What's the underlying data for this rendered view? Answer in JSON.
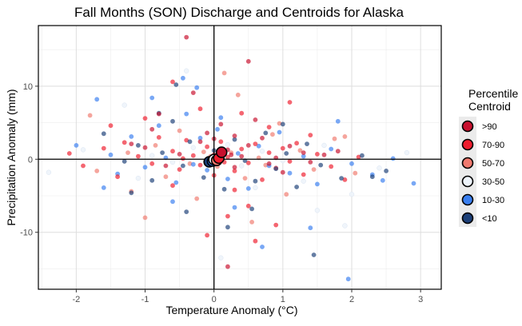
{
  "chart_data": {
    "type": "scatter",
    "title": "Fall Months (SON) Discharge and Centroids for Alaska",
    "xlabel": "Temperature Anomaly (°C)",
    "ylabel": "Precipitation Anomaly (mm)",
    "xlim": [
      -2.55,
      3.3
    ],
    "ylim": [
      -17.8,
      18.3
    ],
    "x_ticks": [
      -2,
      -1,
      0,
      1,
      2,
      3
    ],
    "y_ticks": [
      -10,
      0,
      10
    ],
    "x_tick_labels": [
      "-2",
      "-1",
      "0",
      "1",
      "2",
      "3"
    ],
    "y_tick_labels": [
      "-10",
      "0",
      "10"
    ],
    "grid": true,
    "reference_lines": {
      "x": 0,
      "y": 0
    },
    "legend": {
      "title": "Percentile Centroid",
      "title_lines": [
        "Percentile",
        "Centroid"
      ],
      "position": "right",
      "entries": [
        {
          "label": ">90",
          "color": "#c8102e"
        },
        {
          "label": "70-90",
          "color": "#ef1d2e"
        },
        {
          "label": "50-70",
          "color": "#f07a6f"
        },
        {
          "label": "30-50",
          "color": "#eef4fb"
        },
        {
          "label": "10-30",
          "color": "#3a7ff0"
        },
        {
          "label": "<10",
          "color": "#1c3f78"
        }
      ]
    },
    "series": [
      {
        "name": ">90",
        "color": "#c8102e",
        "centroid": [
          0.11,
          0.95
        ],
        "points": [
          [
            -0.4,
            16.7
          ],
          [
            0.5,
            13.4
          ],
          [
            -0.8,
            6.2
          ],
          [
            0.1,
            4.8
          ],
          [
            0.3,
            3.2
          ],
          [
            -0.2,
            2.4
          ],
          [
            0.7,
            2.9
          ],
          [
            1.1,
            1.8
          ],
          [
            -1.0,
            1.6
          ],
          [
            0.2,
            1.3
          ],
          [
            1.3,
            0.9
          ],
          [
            -0.5,
            0.7
          ],
          [
            0.4,
            0.4
          ],
          [
            0.9,
            0.2
          ],
          [
            1.6,
            0.6
          ],
          [
            -1.2,
            2.1
          ],
          [
            0.0,
            2.8
          ],
          [
            0.6,
            5.4
          ],
          [
            -0.3,
            9.1
          ],
          [
            0.8,
            -0.6
          ],
          [
            0.3,
            -1.1
          ],
          [
            1.0,
            -1.8
          ],
          [
            -0.7,
            -0.9
          ],
          [
            1.8,
            1.1
          ],
          [
            0.2,
            -14.7
          ],
          [
            -0.1,
            3.6
          ],
          [
            0.5,
            1.9
          ],
          [
            1.4,
            -0.4
          ],
          [
            -0.9,
            4.1
          ],
          [
            0.25,
            0.6
          ]
        ]
      },
      {
        "name": "70-90",
        "color": "#ef1d2e",
        "centroid": [
          0.07,
          0.15
        ],
        "points": [
          [
            -2.1,
            0.8
          ],
          [
            -1.6,
            1.5
          ],
          [
            -1.3,
            2.3
          ],
          [
            -1.1,
            0.4
          ],
          [
            -0.9,
            -0.6
          ],
          [
            -0.8,
            3.0
          ],
          [
            -0.6,
            1.1
          ],
          [
            -0.5,
            -1.4
          ],
          [
            -0.4,
            2.6
          ],
          [
            -0.3,
            0.5
          ],
          [
            -0.2,
            -0.8
          ],
          [
            -0.1,
            1.7
          ],
          [
            0.0,
            -2.2
          ],
          [
            0.1,
            2.4
          ],
          [
            0.2,
            0.3
          ],
          [
            0.3,
            -1.6
          ],
          [
            0.4,
            1.4
          ],
          [
            0.5,
            -0.5
          ],
          [
            0.6,
            2.1
          ],
          [
            0.7,
            -2.8
          ],
          [
            0.8,
            0.9
          ],
          [
            0.9,
            -1.2
          ],
          [
            1.0,
            1.5
          ],
          [
            1.1,
            -0.3
          ],
          [
            1.2,
            2.2
          ],
          [
            1.3,
            -2.1
          ],
          [
            1.5,
            0.7
          ],
          [
            1.7,
            -1.0
          ],
          [
            -1.9,
            -0.9
          ],
          [
            -1.4,
            -2.4
          ],
          [
            -0.6,
            -3.6
          ],
          [
            0.3,
            -4.2
          ],
          [
            0.5,
            -6.4
          ],
          [
            0.2,
            -7.8
          ],
          [
            -0.1,
            -10.4
          ],
          [
            0.6,
            -11.2
          ],
          [
            0.9,
            -9.0
          ],
          [
            1.9,
            -2.8
          ],
          [
            2.1,
            0.3
          ],
          [
            -1.5,
            4.6
          ],
          [
            -0.2,
            6.9
          ],
          [
            0.4,
            6.3
          ],
          [
            -0.6,
            10.6
          ],
          [
            1.1,
            7.8
          ],
          [
            0.8,
            4.4
          ],
          [
            -1.0,
            5.6
          ],
          [
            1.4,
            3.3
          ],
          [
            0.0,
            0.6
          ],
          [
            0.15,
            -0.4
          ],
          [
            -0.45,
            0.1
          ]
        ]
      },
      {
        "name": "50-70",
        "color": "#f07a6f",
        "centroid": [
          0.04,
          -0.15
        ],
        "points": [
          [
            -1.8,
            6.0
          ],
          [
            -1.7,
            -1.6
          ],
          [
            -1.2,
            -4.4
          ],
          [
            -1.0,
            -8.0
          ],
          [
            -0.7,
            -2.4
          ],
          [
            -0.5,
            3.9
          ],
          [
            -0.35,
            -0.6
          ],
          [
            -0.15,
            1.0
          ],
          [
            0.05,
            -1.0
          ],
          [
            0.25,
            0.9
          ],
          [
            0.45,
            -2.6
          ],
          [
            0.65,
            0.2
          ],
          [
            0.85,
            3.4
          ],
          [
            1.05,
            -4.8
          ],
          [
            1.25,
            1.2
          ],
          [
            1.45,
            -1.4
          ],
          [
            1.75,
            2.8
          ],
          [
            2.05,
            -1.9
          ],
          [
            0.35,
            8.8
          ],
          [
            0.15,
            11.8
          ],
          [
            -0.25,
            -5.4
          ],
          [
            0.55,
            -8.6
          ],
          [
            -0.85,
            1.9
          ],
          [
            0.75,
            -0.8
          ],
          [
            -0.05,
            0.4
          ],
          [
            1.9,
            3.1
          ],
          [
            -1.25,
            0.9
          ],
          [
            0.95,
            4.9
          ]
        ]
      },
      {
        "name": "30-50",
        "color": "#eef4fb",
        "centroid": [
          0.0,
          -0.05
        ],
        "points": [
          [
            -2.4,
            -1.8
          ],
          [
            -1.9,
            1.3
          ],
          [
            -1.3,
            7.4
          ],
          [
            -0.9,
            0.5
          ],
          [
            -0.6,
            -0.4
          ],
          [
            -0.3,
            1.6
          ],
          [
            0.0,
            -0.6
          ],
          [
            0.2,
            2.0
          ],
          [
            0.4,
            -0.9
          ],
          [
            0.7,
            1.1
          ],
          [
            1.0,
            -0.2
          ],
          [
            1.3,
            -3.0
          ],
          [
            1.6,
            1.9
          ],
          [
            2.0,
            -4.8
          ],
          [
            2.4,
            -1.2
          ],
          [
            2.8,
            0.9
          ],
          [
            0.1,
            -13.5
          ],
          [
            1.5,
            -7.0
          ],
          [
            -0.4,
            12.1
          ],
          [
            0.6,
            -3.9
          ],
          [
            1.9,
            -9.1
          ],
          [
            -1.1,
            -2.6
          ]
        ]
      },
      {
        "name": "10-30",
        "color": "#3a7ff0",
        "centroid": [
          -0.02,
          -0.25
        ],
        "points": [
          [
            -1.7,
            8.2
          ],
          [
            -1.5,
            0.6
          ],
          [
            -1.4,
            -2.0
          ],
          [
            -1.2,
            3.1
          ],
          [
            -1.0,
            -1.1
          ],
          [
            -0.8,
            4.6
          ],
          [
            -0.7,
            0.2
          ],
          [
            -0.55,
            -3.2
          ],
          [
            -0.4,
            6.2
          ],
          [
            -0.3,
            -0.7
          ],
          [
            -0.2,
            2.9
          ],
          [
            -0.1,
            -1.5
          ],
          [
            0.05,
            4.1
          ],
          [
            0.2,
            -2.7
          ],
          [
            0.35,
            0.8
          ],
          [
            0.5,
            -4.0
          ],
          [
            0.65,
            1.8
          ],
          [
            0.8,
            -0.9
          ],
          [
            0.95,
            3.7
          ],
          [
            1.1,
            -1.9
          ],
          [
            1.3,
            0.4
          ],
          [
            1.5,
            -3.4
          ],
          [
            1.7,
            1.4
          ],
          [
            2.0,
            -0.6
          ],
          [
            2.3,
            -2.1
          ],
          [
            2.6,
            0.1
          ],
          [
            2.9,
            -3.3
          ],
          [
            -0.45,
            11.1
          ],
          [
            -0.9,
            8.4
          ],
          [
            -0.6,
            -5.8
          ],
          [
            0.3,
            -6.6
          ],
          [
            0.7,
            -12.0
          ],
          [
            1.95,
            -16.4
          ],
          [
            1.4,
            -9.4
          ],
          [
            2.45,
            -2.9
          ],
          [
            1.8,
            5.2
          ],
          [
            -2.0,
            1.9
          ],
          [
            -1.6,
            -3.9
          ],
          [
            -0.25,
            9.8
          ],
          [
            0.1,
            5.7
          ]
        ]
      },
      {
        "name": "<10",
        "color": "#1c3f78",
        "centroid": [
          -0.07,
          -0.35
        ],
        "points": [
          [
            -1.6,
            3.5
          ],
          [
            -1.3,
            -0.3
          ],
          [
            -1.1,
            1.9
          ],
          [
            -0.9,
            -2.9
          ],
          [
            -0.75,
            0.9
          ],
          [
            -0.6,
            5.2
          ],
          [
            -0.45,
            -0.9
          ],
          [
            -0.35,
            2.4
          ],
          [
            -0.15,
            -2.5
          ],
          [
            0.0,
            1.2
          ],
          [
            0.15,
            -4.1
          ],
          [
            0.3,
            2.7
          ],
          [
            0.45,
            -0.2
          ],
          [
            0.6,
            -3.0
          ],
          [
            0.75,
            3.6
          ],
          [
            0.9,
            -1.3
          ],
          [
            1.05,
            0.8
          ],
          [
            1.2,
            -3.8
          ],
          [
            1.35,
            2.1
          ],
          [
            1.55,
            -0.8
          ],
          [
            1.85,
            -2.6
          ],
          [
            2.15,
            0.5
          ],
          [
            2.5,
            -1.6
          ],
          [
            1.45,
            -13.1
          ],
          [
            -0.55,
            10.2
          ],
          [
            -0.8,
            6.3
          ],
          [
            0.55,
            -6.8
          ],
          [
            -1.2,
            -4.6
          ],
          [
            0.2,
            -9.3
          ],
          [
            2.3,
            -2.4
          ],
          [
            -0.4,
            -7.2
          ],
          [
            1.0,
            4.8
          ]
        ]
      }
    ]
  }
}
